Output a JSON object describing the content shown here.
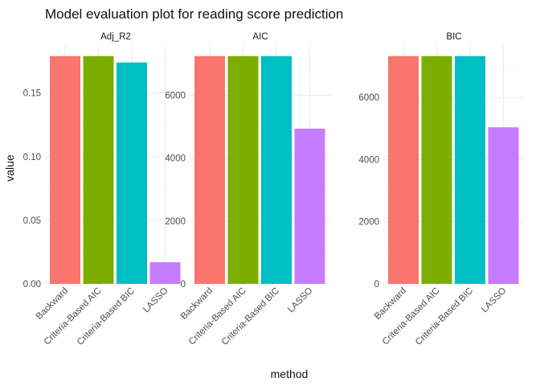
{
  "chart_data": {
    "type": "bar",
    "title": "Model evaluation plot for reading score prediction",
    "xlabel": "method",
    "ylabel": "value",
    "legend": "none",
    "grid": true,
    "categories": [
      "Backward",
      "Criteria-Based AIC",
      "Criteria-Based BIC",
      "LASSO"
    ],
    "colors": [
      "#F8766D",
      "#7CAE00",
      "#00BFC4",
      "#C77CFF"
    ],
    "facets": [
      {
        "name": "Adj_R2",
        "values": [
          0.179,
          0.179,
          0.174,
          0.017
        ],
        "ylim": [
          0,
          0.179
        ],
        "ticks": [
          0,
          0.05,
          0.1,
          0.15
        ],
        "tick_labels": [
          "0.00",
          "0.05",
          "0.10",
          "0.15"
        ]
      },
      {
        "name": "AIC",
        "values": [
          7250,
          7250,
          7250,
          4940
        ],
        "ylim": [
          0,
          7250
        ],
        "ticks": [
          0,
          2000,
          4000,
          6000
        ],
        "tick_labels": [
          "0",
          "2000",
          "4000",
          "6000"
        ]
      },
      {
        "name": "BIC",
        "values": [
          7330,
          7330,
          7330,
          5040
        ],
        "ylim": [
          0,
          7330
        ],
        "ticks": [
          0,
          2000,
          4000,
          6000
        ],
        "tick_labels": [
          "0",
          "2000",
          "4000",
          "6000"
        ]
      }
    ]
  }
}
